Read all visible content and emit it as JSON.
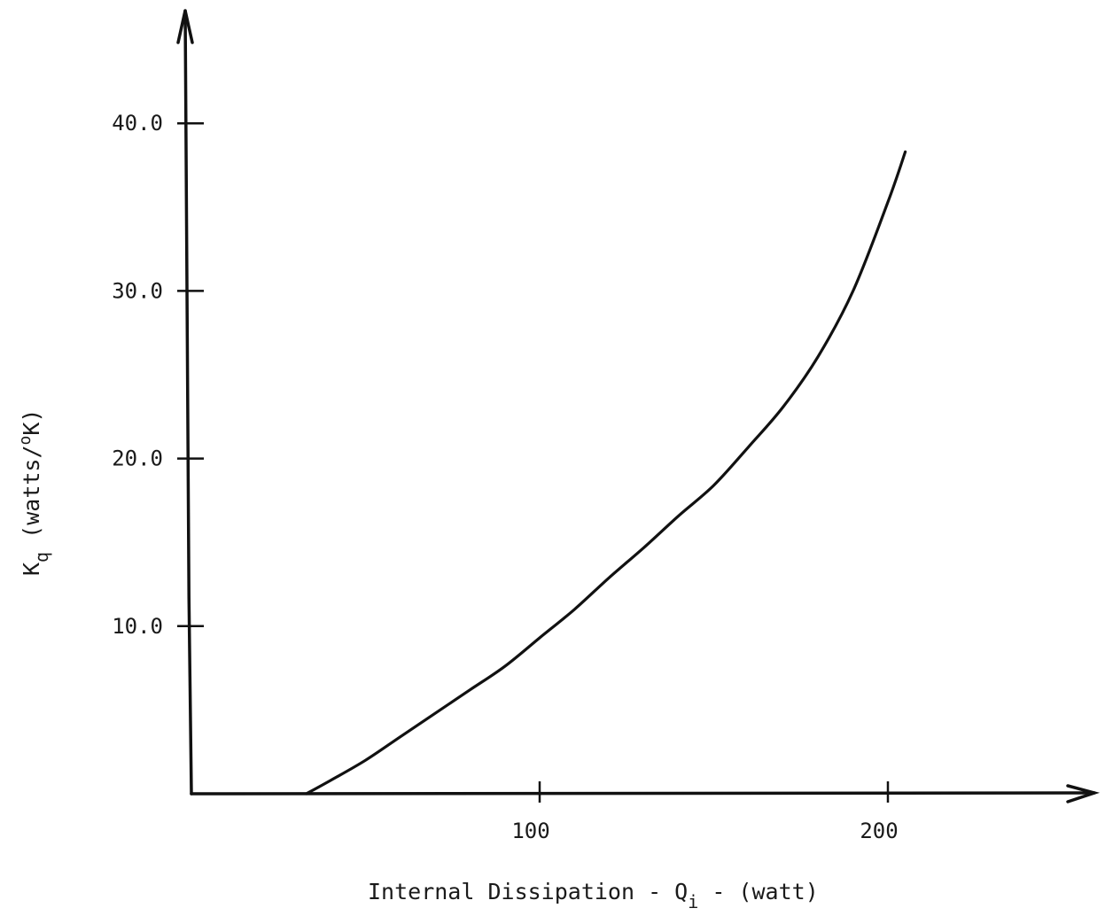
{
  "chart_data": {
    "type": "line",
    "title": "",
    "xlabel": "Internal Dissipation - Q_i - (watt)",
    "xlabel_parts": {
      "before": "Internal Dissipation - Q",
      "subscript": "i",
      "after": " - (watt)"
    },
    "ylabel": "K_q (watts/°K)",
    "ylabel_parts": {
      "main": "K",
      "subscript": "q",
      "paren_open": " (watts/",
      "superscript": "o",
      "paren_close": "K)"
    },
    "xlim": [
      0,
      260
    ],
    "ylim": [
      0,
      44
    ],
    "x_ticks": [
      {
        "value": 100,
        "label": "100"
      },
      {
        "value": 200,
        "label": "200"
      }
    ],
    "y_ticks": [
      {
        "value": 10,
        "label": "10.0"
      },
      {
        "value": 20,
        "label": "20.0"
      },
      {
        "value": 30,
        "label": "30.0"
      },
      {
        "value": 40,
        "label": "40.0"
      }
    ],
    "grid": false,
    "legend": "none",
    "series": [
      {
        "x": [
          33,
          40,
          50,
          60,
          70,
          80,
          90,
          100,
          110,
          120,
          130,
          140,
          150,
          160,
          170,
          180,
          190,
          200,
          205
        ],
        "values": [
          0.0,
          0.8,
          2.0,
          3.4,
          4.8,
          6.2,
          7.6,
          9.3,
          11.0,
          12.9,
          14.7,
          16.6,
          18.4,
          20.7,
          23.1,
          26.1,
          30.0,
          35.3,
          38.3
        ]
      }
    ]
  }
}
